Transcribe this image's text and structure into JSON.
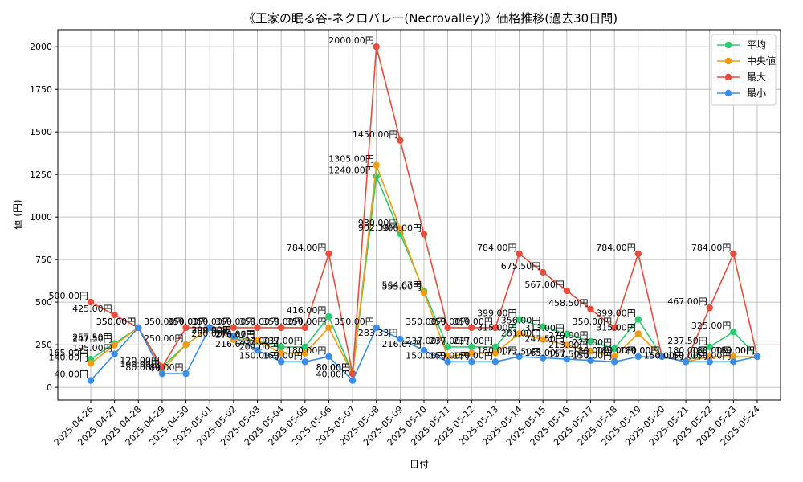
{
  "chart_data": {
    "type": "line",
    "title": "《王家の眠る谷-ネクロバレー(Necrovalley)》価格推移(過去30日間)",
    "xlabel": "日付",
    "ylabel": "値 (円)",
    "ylim": [
      -75,
      2100
    ],
    "yticks": [
      0,
      250,
      500,
      750,
      1000,
      1250,
      1500,
      1750,
      2000
    ],
    "grid": true,
    "legend_position": "top-right",
    "x": [
      "2025-04-26",
      "2025-04-27",
      "2025-04-28",
      "2025-04-29",
      "2025-04-30",
      "2025-05-01",
      "2025-05-02",
      "2025-05-03",
      "2025-05-04",
      "2025-05-05",
      "2025-05-06",
      "2025-05-07",
      "2025-05-08",
      "2025-05-09",
      "2025-05-10",
      "2025-05-11",
      "2025-05-12",
      "2025-05-13",
      "2025-05-14",
      "2025-05-15",
      "2025-05-16",
      "2025-05-17",
      "2025-05-18",
      "2025-05-19",
      "2025-05-20",
      "2025-05-21",
      "2025-05-22",
      "2025-05-23",
      "2025-05-24"
    ],
    "series": [
      {
        "name": "平均",
        "color": "#2ecc71",
        "values": [
          165.0,
          257.5,
          350.0,
          120.0,
          250.0,
          350.0,
          300.0,
          270.67,
          237.0,
          237.0,
          416.0,
          80.0,
          1240.0,
          902.33,
          564.67,
          237.0,
          237.0,
          237.0,
          399.0,
          356.0,
          313.0,
          270.0,
          227.0,
          399.0,
          180.0,
          150.0,
          237.5,
          325.0,
          180.0
        ]
      },
      {
        "name": "中央値",
        "color": "#f39c12",
        "values": [
          140.0,
          247.5,
          350.0,
          100.0,
          250.0,
          350.0,
          280.0,
          276.0,
          200.0,
          200.0,
          350.0,
          80.0,
          1305.0,
          930.0,
          555.0,
          180.0,
          200.0,
          200.0,
          315.0,
          281.0,
          247.5,
          213.0,
          180.0,
          315.0,
          180.0,
          150.0,
          180.0,
          180.0,
          180.0
        ]
      },
      {
        "name": "最大",
        "color": "#e74c3c",
        "values": [
          500.0,
          425.0,
          350.0,
          120.0,
          350.0,
          350.0,
          350.0,
          350.0,
          350.0,
          350.0,
          784.0,
          80.0,
          2000.0,
          1450.0,
          900.0,
          350.0,
          350.0,
          350.0,
          784.0,
          675.5,
          567.0,
          458.5,
          350.0,
          784.0,
          180.0,
          150.0,
          467.0,
          784.0,
          180.0
        ]
      },
      {
        "name": "最小",
        "color": "#3b8ee8",
        "values": [
          40.0,
          195.0,
          350.0,
          80.0,
          80.0,
          350.0,
          299.0,
          216.67,
          150.0,
          150.0,
          180.0,
          40.0,
          350.0,
          283.33,
          216.67,
          150.0,
          150.0,
          150.0,
          180.0,
          172.5,
          165.0,
          157.5,
          150.0,
          180.0,
          180.0,
          150.0,
          150.0,
          150.0,
          180.0
        ]
      }
    ],
    "point_labels": [
      {
        "series": "平均",
        "x": "2025-04-26",
        "text": "165.00円"
      },
      {
        "series": "中央値",
        "x": "2025-04-26",
        "text": "140.00円"
      },
      {
        "series": "最大",
        "x": "2025-04-26",
        "text": "500.00円"
      },
      {
        "series": "最小",
        "x": "2025-04-26",
        "text": "40.00円"
      },
      {
        "series": "平均",
        "x": "2025-04-27",
        "text": "257.50円"
      },
      {
        "series": "中央値",
        "x": "2025-04-27",
        "text": "247.50円"
      },
      {
        "series": "最大",
        "x": "2025-04-27",
        "text": "425.00円"
      },
      {
        "series": "最小",
        "x": "2025-04-27",
        "text": "195.00円"
      },
      {
        "series": "平均",
        "x": "2025-04-28",
        "text": "350.00円"
      },
      {
        "series": "最大",
        "x": "2025-04-28",
        "text": "350.00円"
      },
      {
        "series": "平均",
        "x": "2025-04-29",
        "text": "120.00円"
      },
      {
        "series": "中央値",
        "x": "2025-04-29",
        "text": "100.00円"
      },
      {
        "series": "最小",
        "x": "2025-04-29",
        "text": "80.00円"
      },
      {
        "series": "平均",
        "x": "2025-04-30",
        "text": "250.00円"
      },
      {
        "series": "最大",
        "x": "2025-04-30",
        "text": "350.00円"
      },
      {
        "series": "最小",
        "x": "2025-04-30",
        "text": "80.00円"
      },
      {
        "series": "平均",
        "x": "2025-05-01",
        "text": "350.00円"
      },
      {
        "series": "最大",
        "x": "2025-05-01",
        "text": "350.00円"
      },
      {
        "series": "平均",
        "x": "2025-05-02",
        "text": "300.00円"
      },
      {
        "series": "中央値",
        "x": "2025-05-02",
        "text": "280.00円"
      },
      {
        "series": "最大",
        "x": "2025-05-02",
        "text": "350.00円"
      },
      {
        "series": "最小",
        "x": "2025-05-02",
        "text": "299.00円"
      },
      {
        "series": "平均",
        "x": "2025-05-03",
        "text": "270.67円"
      },
      {
        "series": "中央値",
        "x": "2025-05-03",
        "text": "276.00円"
      },
      {
        "series": "最大",
        "x": "2025-05-03",
        "text": "350.00円"
      },
      {
        "series": "最小",
        "x": "2025-05-03",
        "text": "216.67円"
      },
      {
        "series": "平均",
        "x": "2025-05-04",
        "text": "237.00円"
      },
      {
        "series": "中央値",
        "x": "2025-05-04",
        "text": "200.00円"
      },
      {
        "series": "最大",
        "x": "2025-05-04",
        "text": "350.00円"
      },
      {
        "series": "最小",
        "x": "2025-05-04",
        "text": "150.00円"
      },
      {
        "series": "平均",
        "x": "2025-05-05",
        "text": "237.00円"
      },
      {
        "series": "最大",
        "x": "2025-05-05",
        "text": "350.00円"
      },
      {
        "series": "最小",
        "x": "2025-05-05",
        "text": "150.00円"
      },
      {
        "series": "平均",
        "x": "2025-05-06",
        "text": "416.00円"
      },
      {
        "series": "中央値",
        "x": "2025-05-06",
        "text": "350.00円"
      },
      {
        "series": "最大",
        "x": "2025-05-06",
        "text": "784.00円"
      },
      {
        "series": "最小",
        "x": "2025-05-06",
        "text": "180.00円"
      },
      {
        "series": "平均",
        "x": "2025-05-07",
        "text": "80.00円"
      },
      {
        "series": "最大",
        "x": "2025-05-07",
        "text": "80.00円"
      },
      {
        "series": "最小",
        "x": "2025-05-07",
        "text": "40.00円"
      },
      {
        "series": "平均",
        "x": "2025-05-08",
        "text": "1240.00円"
      },
      {
        "series": "中央値",
        "x": "2025-05-08",
        "text": "1305.00円"
      },
      {
        "series": "最大",
        "x": "2025-05-08",
        "text": "2000.00円"
      },
      {
        "series": "最小",
        "x": "2025-05-08",
        "text": "350.00円"
      },
      {
        "series": "平均",
        "x": "2025-05-09",
        "text": "902.33円"
      },
      {
        "series": "中央値",
        "x": "2025-05-09",
        "text": "930.00円"
      },
      {
        "series": "最大",
        "x": "2025-05-09",
        "text": "1450.00円"
      },
      {
        "series": "最小",
        "x": "2025-05-09",
        "text": "283.33円"
      },
      {
        "series": "平均",
        "x": "2025-05-10",
        "text": "564.67円"
      },
      {
        "series": "中央値",
        "x": "2025-05-10",
        "text": "555.00円"
      },
      {
        "series": "最大",
        "x": "2025-05-10",
        "text": "900.00円"
      },
      {
        "series": "最小",
        "x": "2025-05-10",
        "text": "216.67円"
      },
      {
        "series": "平均",
        "x": "2025-05-11",
        "text": "237.00円"
      },
      {
        "series": "最大",
        "x": "2025-05-11",
        "text": "350.00円"
      },
      {
        "series": "最小",
        "x": "2025-05-11",
        "text": "150.00円"
      },
      {
        "series": "平均",
        "x": "2025-05-12",
        "text": "237.00円"
      },
      {
        "series": "最大",
        "x": "2025-05-12",
        "text": "350.00円"
      },
      {
        "series": "最小",
        "x": "2025-05-12",
        "text": "150.00円"
      },
      {
        "series": "平均",
        "x": "2025-05-13",
        "text": "237.00円"
      },
      {
        "series": "最大",
        "x": "2025-05-13",
        "text": "350.00円"
      },
      {
        "series": "最小",
        "x": "2025-05-13",
        "text": "150.00円"
      },
      {
        "series": "平均",
        "x": "2025-05-14",
        "text": "399.00円"
      },
      {
        "series": "中央値",
        "x": "2025-05-14",
        "text": "315.00円"
      },
      {
        "series": "最大",
        "x": "2025-05-14",
        "text": "784.00円"
      },
      {
        "series": "最小",
        "x": "2025-05-14",
        "text": "180.00円"
      },
      {
        "series": "平均",
        "x": "2025-05-15",
        "text": "356.00円"
      },
      {
        "series": "中央値",
        "x": "2025-05-15",
        "text": "281.00円"
      },
      {
        "series": "最大",
        "x": "2025-05-15",
        "text": "675.50円"
      },
      {
        "series": "最小",
        "x": "2025-05-15",
        "text": "172.50円"
      },
      {
        "series": "平均",
        "x": "2025-05-16",
        "text": "313.00円"
      },
      {
        "series": "中央値",
        "x": "2025-05-16",
        "text": "247.50円"
      },
      {
        "series": "最大",
        "x": "2025-05-16",
        "text": "567.00円"
      },
      {
        "series": "最小",
        "x": "2025-05-16",
        "text": "165.00円"
      },
      {
        "series": "平均",
        "x": "2025-05-17",
        "text": "270.00円"
      },
      {
        "series": "中央値",
        "x": "2025-05-17",
        "text": "213.00円"
      },
      {
        "series": "最大",
        "x": "2025-05-17",
        "text": "458.50円"
      },
      {
        "series": "最小",
        "x": "2025-05-17",
        "text": "157.50円"
      },
      {
        "series": "平均",
        "x": "2025-05-18",
        "text": "227.00円"
      },
      {
        "series": "中央値",
        "x": "2025-05-18",
        "text": "180.00円"
      },
      {
        "series": "最大",
        "x": "2025-05-18",
        "text": "350.00円"
      },
      {
        "series": "最小",
        "x": "2025-05-18",
        "text": "150.00円"
      },
      {
        "series": "平均",
        "x": "2025-05-19",
        "text": "399.00円"
      },
      {
        "series": "中央値",
        "x": "2025-05-19",
        "text": "315.00円"
      },
      {
        "series": "最大",
        "x": "2025-05-19",
        "text": "784.00円"
      },
      {
        "series": "最小",
        "x": "2025-05-19",
        "text": "180.00円"
      },
      {
        "series": "平均",
        "x": "2025-05-20",
        "text": "180.00円"
      },
      {
        "series": "最大",
        "x": "2025-05-20",
        "text": "180.00円"
      },
      {
        "series": "平均",
        "x": "2025-05-21",
        "text": "150.00円"
      },
      {
        "series": "最大",
        "x": "2025-05-21",
        "text": "150.00円"
      },
      {
        "series": "平均",
        "x": "2025-05-22",
        "text": "237.50円"
      },
      {
        "series": "中央値",
        "x": "2025-05-22",
        "text": "180.00円"
      },
      {
        "series": "最大",
        "x": "2025-05-22",
        "text": "467.00円"
      },
      {
        "series": "最小",
        "x": "2025-05-22",
        "text": "150.00円"
      },
      {
        "series": "平均",
        "x": "2025-05-23",
        "text": "325.00円"
      },
      {
        "series": "中央値",
        "x": "2025-05-23",
        "text": "180.00円"
      },
      {
        "series": "最大",
        "x": "2025-05-23",
        "text": "784.00円"
      },
      {
        "series": "最小",
        "x": "2025-05-23",
        "text": "150.00円"
      },
      {
        "series": "平均",
        "x": "2025-05-24",
        "text": "180.00円"
      },
      {
        "series": "最大",
        "x": "2025-05-24",
        "text": "180.00円"
      }
    ]
  }
}
